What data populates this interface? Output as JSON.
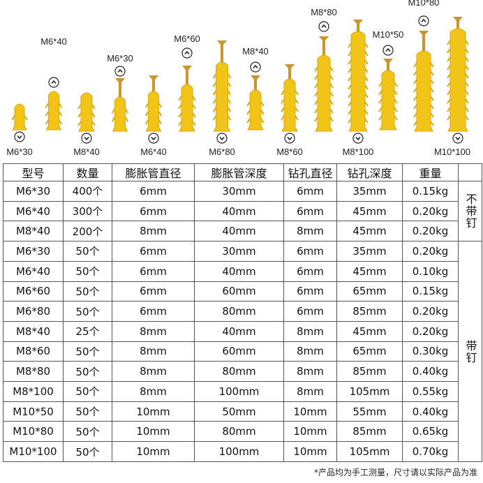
{
  "illustration": {
    "top_labels": [
      "M6*40",
      "M6*30",
      "M6*60",
      "M8*40",
      "M8*80",
      "M10*50",
      "M10*80"
    ],
    "bottom_labels": [
      "M6*30",
      "M8*40",
      "M6*40",
      "M6*80",
      "M8*60",
      "M8*100",
      "M10*100"
    ],
    "colors": {
      "plastic": "#f2c418",
      "plastic_shade": "#d9a80c",
      "screw": "#c8962a"
    },
    "icons": [
      "chevron-up-circle-icon",
      "chevron-down-circle-icon"
    ]
  },
  "table": {
    "headers": [
      "型号",
      "数量",
      "膨胀管直径",
      "膨胀管深度",
      "钻孔直径",
      "钻孔深度",
      "重量"
    ],
    "rows": [
      [
        "M6*30",
        "400个",
        "6mm",
        "30mm",
        "6mm",
        "35mm",
        "0.15kg"
      ],
      [
        "M6*40",
        "300个",
        "6mm",
        "40mm",
        "6mm",
        "45mm",
        "0.20kg"
      ],
      [
        "M8*40",
        "200个",
        "8mm",
        "40mm",
        "8mm",
        "45mm",
        "0.20kg"
      ],
      [
        "M6*30",
        "50个",
        "6mm",
        "30mm",
        "6mm",
        "35mm",
        "0.20kg"
      ],
      [
        "M6*40",
        "50个",
        "6mm",
        "40mm",
        "6mm",
        "45mm",
        "0.10kg"
      ],
      [
        "M6*60",
        "50个",
        "6mm",
        "60mm",
        "6mm",
        "65mm",
        "0.15kg"
      ],
      [
        "M6*80",
        "50个",
        "6mm",
        "80mm",
        "6mm",
        "85mm",
        "0.20kg"
      ],
      [
        "M8*40",
        "25个",
        "8mm",
        "40mm",
        "8mm",
        "45mm",
        "0.20kg"
      ],
      [
        "M8*60",
        "50个",
        "8mm",
        "60mm",
        "8mm",
        "65mm",
        "0.30kg"
      ],
      [
        "M8*80",
        "50个",
        "8mm",
        "80mm",
        "8mm",
        "85mm",
        "0.40kg"
      ],
      [
        "M8*100",
        "50个",
        "8mm",
        "100mm",
        "8mm",
        "105mm",
        "0.55kg"
      ],
      [
        "M10*50",
        "50个",
        "10mm",
        "50mm",
        "10mm",
        "55mm",
        "0.40kg"
      ],
      [
        "M10*80",
        "50个",
        "10mm",
        "80mm",
        "10mm",
        "85mm",
        "0.65kg"
      ],
      [
        "M10*100",
        "50个",
        "10mm",
        "100mm",
        "10mm",
        "105mm",
        "0.70kg"
      ]
    ],
    "group_notes": [
      "不带钉",
      "带钉"
    ]
  },
  "footnote": "*产品均为手工测量，尺寸请以实际产品为准"
}
